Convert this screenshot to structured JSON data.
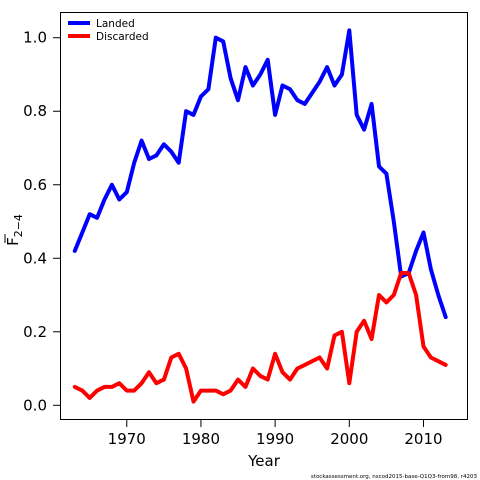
{
  "chart_data": {
    "type": "line",
    "xlabel": "Year",
    "ylabel": {
      "base": "F",
      "subscript": "2−4"
    },
    "xlim": [
      1961,
      2016
    ],
    "ylim": [
      -0.04,
      1.07
    ],
    "x_ticks": [
      1970,
      1980,
      1990,
      2000,
      2010
    ],
    "y_ticks": [
      0.0,
      0.2,
      0.4,
      0.6,
      0.8,
      1.0
    ],
    "y_tick_labels": [
      "0.0",
      "0.2",
      "0.4",
      "0.6",
      "0.8",
      "1.0"
    ],
    "grid": false,
    "legend_position": "top-left",
    "x": [
      1963,
      1964,
      1965,
      1966,
      1967,
      1968,
      1969,
      1970,
      1971,
      1972,
      1973,
      1974,
      1975,
      1976,
      1977,
      1978,
      1979,
      1980,
      1981,
      1982,
      1983,
      1984,
      1985,
      1986,
      1987,
      1988,
      1989,
      1990,
      1991,
      1992,
      1993,
      1994,
      1995,
      1996,
      1997,
      1998,
      1999,
      2000,
      2001,
      2002,
      2003,
      2004,
      2005,
      2006,
      2007,
      2008,
      2009,
      2010,
      2011,
      2012,
      2013
    ],
    "series": [
      {
        "name": "Landed",
        "color": "#0000ff",
        "values": [
          0.42,
          0.47,
          0.52,
          0.51,
          0.56,
          0.6,
          0.56,
          0.58,
          0.66,
          0.72,
          0.67,
          0.68,
          0.71,
          0.69,
          0.66,
          0.8,
          0.79,
          0.84,
          0.86,
          1.0,
          0.99,
          0.89,
          0.83,
          0.92,
          0.87,
          0.9,
          0.94,
          0.79,
          0.87,
          0.86,
          0.83,
          0.82,
          0.85,
          0.88,
          0.92,
          0.87,
          0.9,
          1.02,
          0.79,
          0.75,
          0.82,
          0.65,
          0.63,
          0.5,
          0.35,
          0.36,
          0.42,
          0.47,
          0.37,
          0.3,
          0.24
        ]
      },
      {
        "name": "Discarded",
        "color": "#ff0000",
        "values": [
          0.05,
          0.04,
          0.02,
          0.04,
          0.05,
          0.05,
          0.06,
          0.04,
          0.04,
          0.06,
          0.09,
          0.06,
          0.07,
          0.13,
          0.14,
          0.1,
          0.01,
          0.04,
          0.04,
          0.04,
          0.03,
          0.04,
          0.07,
          0.05,
          0.1,
          0.08,
          0.07,
          0.14,
          0.09,
          0.07,
          0.1,
          0.11,
          0.12,
          0.13,
          0.1,
          0.19,
          0.2,
          0.06,
          0.2,
          0.23,
          0.18,
          0.3,
          0.28,
          0.3,
          0.36,
          0.36,
          0.3,
          0.16,
          0.13,
          0.12,
          0.11
        ]
      }
    ]
  },
  "footer": "stockassessment.org, nscod2015-base-Q1Q3-from98, r4203"
}
